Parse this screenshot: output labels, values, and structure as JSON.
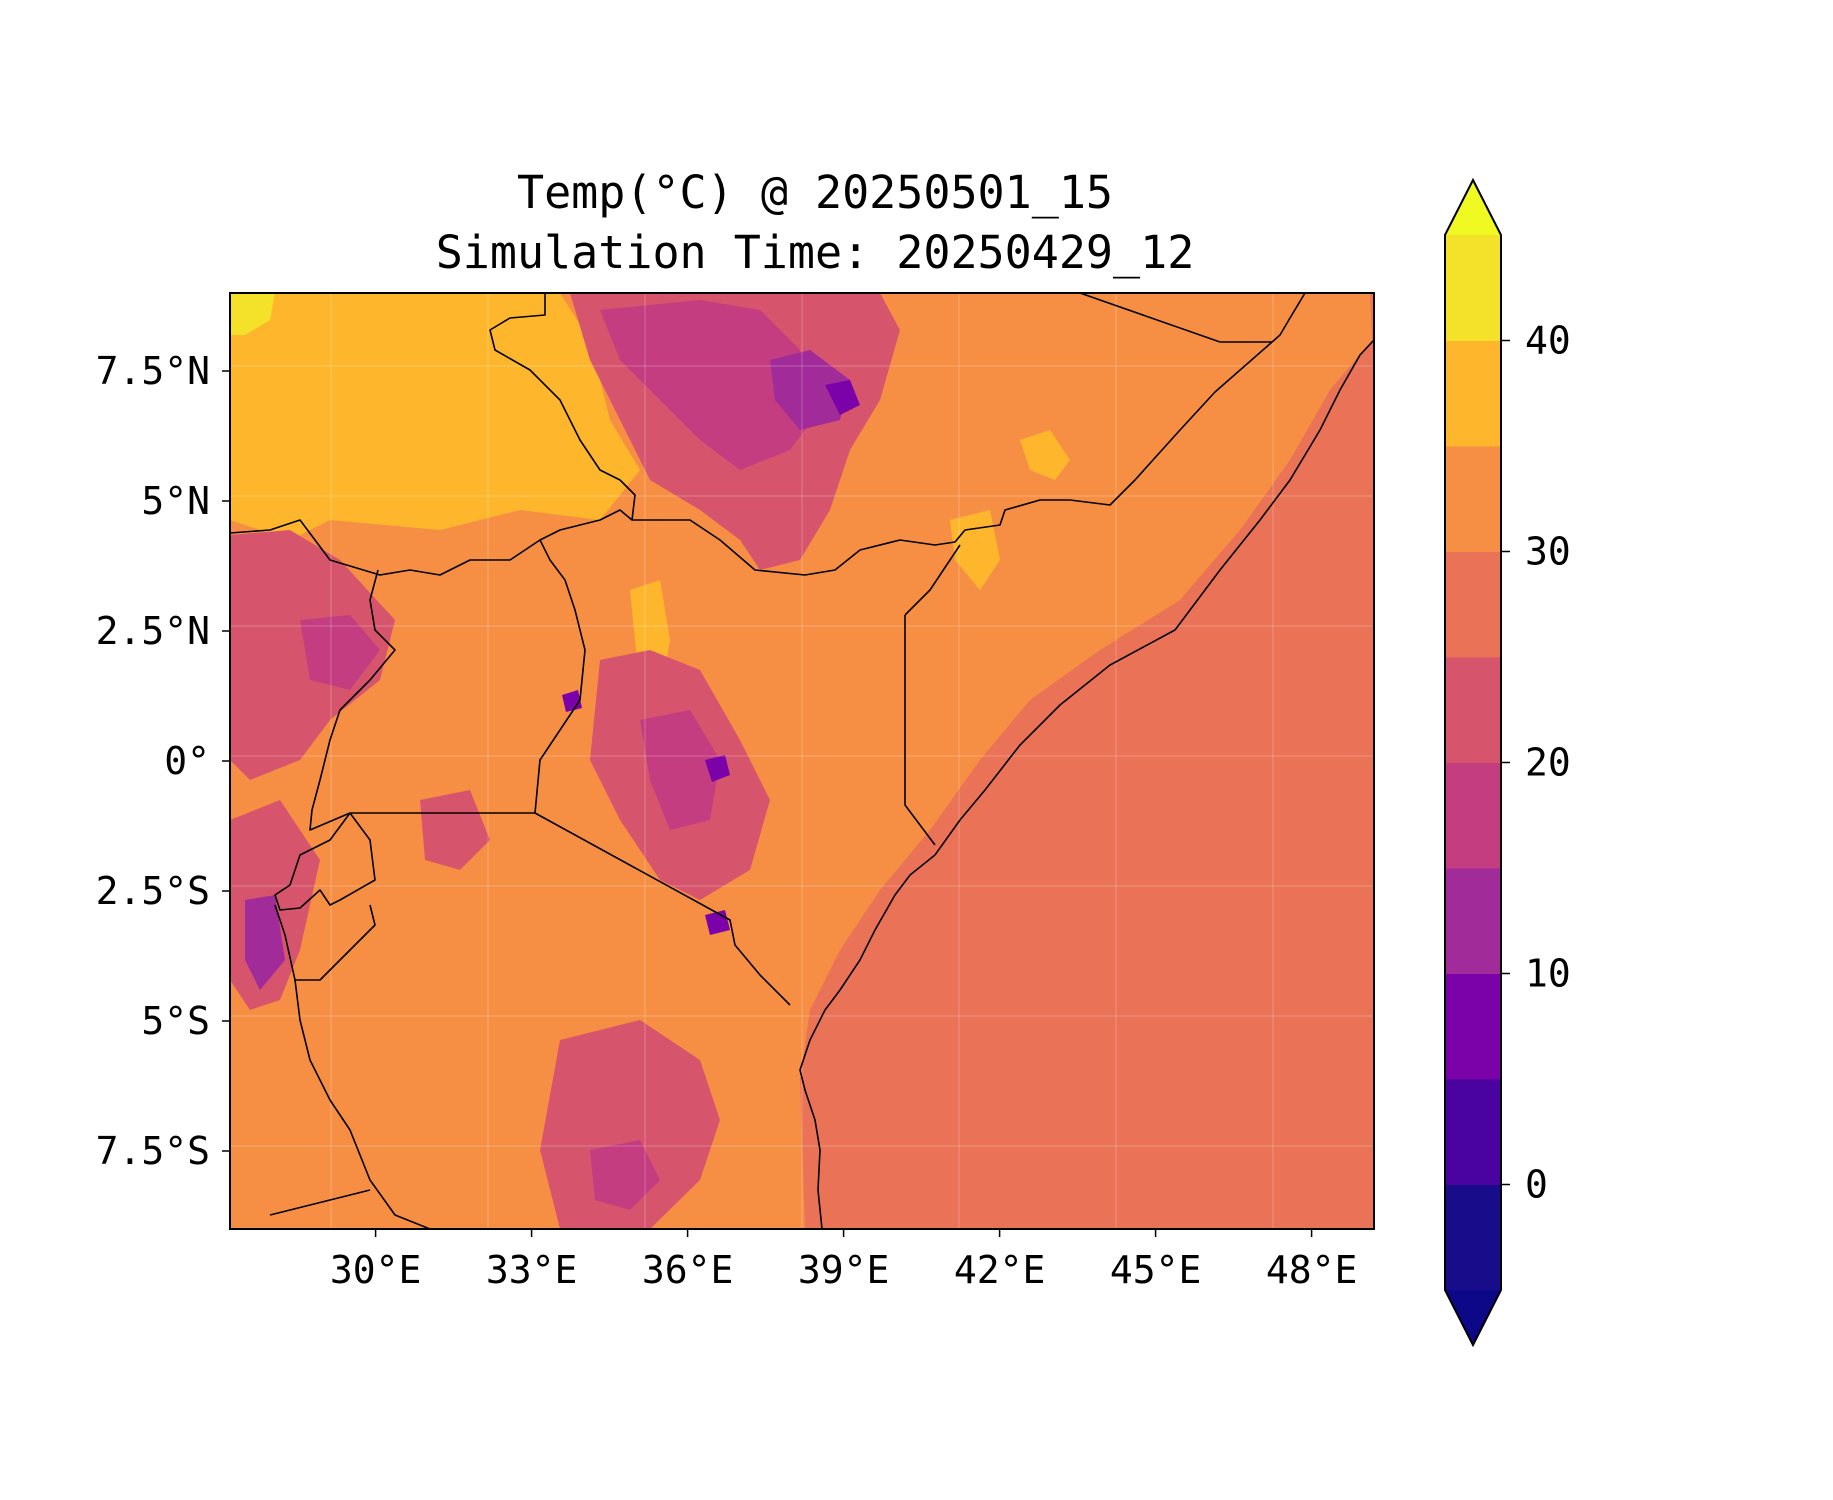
{
  "title": {
    "line1": "Temp(°C) @ 20250501_15",
    "line2": "Simulation Time: 20250429_12"
  },
  "map": {
    "lon_range": [
      27.2,
      49.2
    ],
    "lat_range": [
      -9.0,
      9.0
    ],
    "x_ticks": [
      {
        "value": 30,
        "label": "30°E"
      },
      {
        "value": 33,
        "label": "33°E"
      },
      {
        "value": 36,
        "label": "36°E"
      },
      {
        "value": 39,
        "label": "39°E"
      },
      {
        "value": 42,
        "label": "42°E"
      },
      {
        "value": 45,
        "label": "45°E"
      },
      {
        "value": 48,
        "label": "48°E"
      }
    ],
    "y_ticks": [
      {
        "value": 7.5,
        "label": "7.5°N"
      },
      {
        "value": 5,
        "label": "5°N"
      },
      {
        "value": 2.5,
        "label": "2.5°N"
      },
      {
        "value": 0,
        "label": "0°"
      },
      {
        "value": -2.5,
        "label": "2.5°S"
      },
      {
        "value": -5,
        "label": "5°S"
      },
      {
        "value": -7.5,
        "label": "7.5°S"
      }
    ],
    "ocean_value": 28,
    "gridlines": true
  },
  "colorbar": {
    "min": -5,
    "max": 45,
    "extend": "both",
    "levels": [
      -5,
      0,
      5,
      10,
      15,
      20,
      25,
      30,
      35,
      40,
      45
    ],
    "colors": [
      "#180c8a",
      "#4a02a0",
      "#7a02a8",
      "#a22b9a",
      "#c33d80",
      "#d6556d",
      "#e97257",
      "#f68f44",
      "#feb72d",
      "#f3e12a"
    ],
    "under_color": "#0d0887",
    "over_color": "#f0f921",
    "ticks": [
      {
        "value": 0,
        "label": "0"
      },
      {
        "value": 10,
        "label": "10"
      },
      {
        "value": 20,
        "label": "20"
      },
      {
        "value": 30,
        "label": "30"
      },
      {
        "value": 40,
        "label": "40"
      }
    ]
  }
}
